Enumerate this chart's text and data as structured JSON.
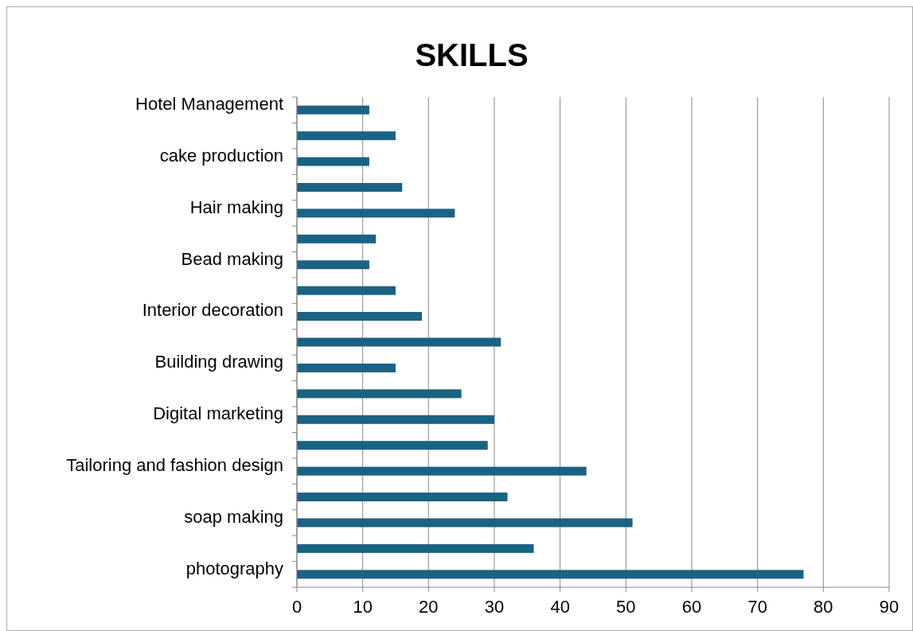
{
  "chart_data": {
    "type": "bar",
    "orientation": "horizontal",
    "title": "SKILLS",
    "categories": [
      "Hotel Management",
      null,
      "cake production",
      null,
      "Hair making",
      null,
      "Bead making",
      null,
      "Interior decoration",
      null,
      "Building drawing",
      null,
      "Digital marketing",
      null,
      "Tailoring and fashion design",
      null,
      "soap making",
      null,
      "photography"
    ],
    "values": [
      11,
      15,
      11,
      16,
      24,
      12,
      11,
      15,
      19,
      31,
      15,
      25,
      30,
      29,
      44,
      32,
      51,
      36,
      77
    ],
    "color": "#1b6283",
    "xlim": [
      0,
      90
    ],
    "xticks": [
      0,
      10,
      20,
      30,
      40,
      50,
      60,
      70,
      80,
      90
    ],
    "grid": "x"
  }
}
